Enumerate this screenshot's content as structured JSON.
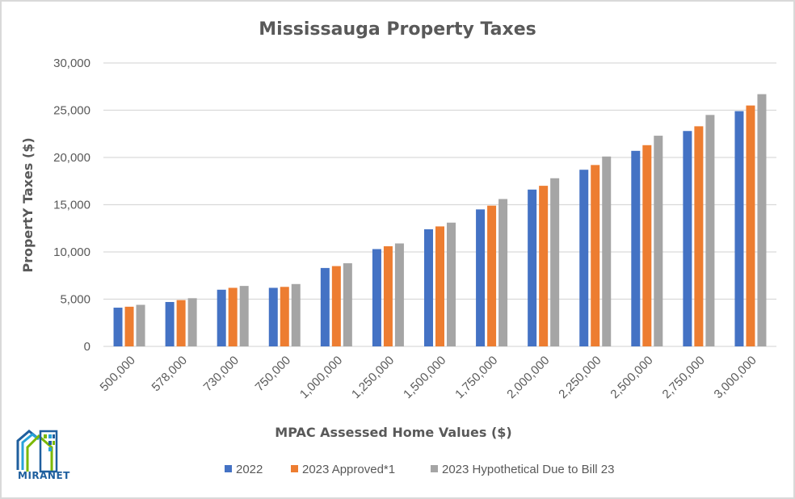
{
  "chart_data": {
    "type": "bar",
    "title": "Mississauga Property Taxes",
    "xlabel": "MPAC Assessed Home Values ($)",
    "ylabel": "PropertY Taxes ($)",
    "ylim": [
      0,
      30000
    ],
    "yticks": [
      "0",
      "5,000",
      "10,000",
      "15,000",
      "20,000",
      "25,000",
      "30,000"
    ],
    "ytick_values": [
      0,
      5000,
      10000,
      15000,
      20000,
      25000,
      30000
    ],
    "grid": true,
    "legend_position": "bottom",
    "categories": [
      "500,000",
      "578,000",
      "730,000",
      "750,000",
      "1,000,000",
      "1,250,000",
      "1,500,000",
      "1,750,000",
      "2,000,000",
      "2,250,000",
      "2,500,000",
      "2,750,000",
      "3,000,000"
    ],
    "series": [
      {
        "name": "2022",
        "color": "#4472c4",
        "values": [
          4100,
          4700,
          6000,
          6200,
          8300,
          10300,
          12400,
          14500,
          16600,
          18700,
          20700,
          22800,
          24900
        ]
      },
      {
        "name": "2023 Approved*1",
        "color": "#ed7d31",
        "values": [
          4200,
          4900,
          6200,
          6300,
          8500,
          10600,
          12700,
          14900,
          17000,
          19200,
          21300,
          23300,
          25500
        ]
      },
      {
        "name": "2023 Hypothetical  Due to Bill 23",
        "color": "#a5a5a5",
        "values": [
          4400,
          5100,
          6400,
          6600,
          8800,
          10900,
          13100,
          15600,
          17800,
          20100,
          22300,
          24500,
          26700
        ]
      }
    ]
  },
  "logo": {
    "text": "MIRANET"
  }
}
